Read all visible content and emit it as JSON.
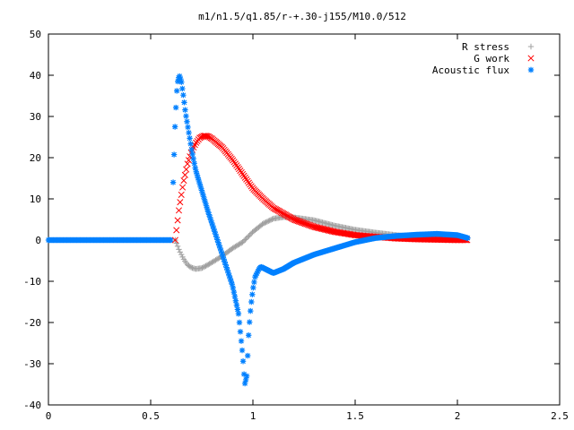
{
  "chart_data": {
    "type": "scatter",
    "title": "m1/n1.5/q1.85/r-+.30-j155/M10.0/512",
    "xlim": [
      0,
      2.5
    ],
    "ylim": [
      -40,
      50
    ],
    "x_ticks": [
      "0",
      "0.5",
      "1",
      "1.5",
      "2",
      "2.5"
    ],
    "x_tick_values": [
      0,
      0.5,
      1,
      1.5,
      2,
      2.5
    ],
    "y_ticks": [
      "-40",
      "-30",
      "-20",
      "-10",
      "0",
      "10",
      "20",
      "30",
      "40",
      "50"
    ],
    "y_tick_values": [
      -40,
      -30,
      -20,
      -10,
      0,
      10,
      20,
      30,
      40,
      50
    ],
    "legend_position": "top-right",
    "series": [
      {
        "name": "R stress",
        "marker": "plus",
        "color": "#a0a0a0",
        "x": [
          0.62,
          0.64,
          0.66,
          0.68,
          0.7,
          0.72,
          0.75,
          0.78,
          0.82,
          0.86,
          0.9,
          0.95,
          1.0,
          1.05,
          1.1,
          1.15,
          1.2,
          1.3,
          1.4,
          1.5,
          1.6,
          1.7,
          1.8,
          1.9,
          2.0,
          2.05
        ],
        "y": [
          0,
          -2.5,
          -4.5,
          -6.0,
          -6.7,
          -7.0,
          -6.8,
          -6.0,
          -4.8,
          -3.5,
          -2.0,
          -0.5,
          2.0,
          4.0,
          5.2,
          5.6,
          5.5,
          4.8,
          3.5,
          2.5,
          1.8,
          1.2,
          0.8,
          0.5,
          0.3,
          0.2
        ]
      },
      {
        "name": "G work",
        "marker": "cross",
        "color": "#ff0000",
        "x": [
          0.62,
          0.64,
          0.66,
          0.68,
          0.7,
          0.72,
          0.74,
          0.76,
          0.78,
          0.8,
          0.85,
          0.9,
          0.95,
          1.0,
          1.05,
          1.1,
          1.2,
          1.3,
          1.4,
          1.5,
          1.6,
          1.7,
          1.8,
          1.9,
          2.0,
          2.05
        ],
        "y": [
          0,
          8.0,
          14.0,
          18.5,
          21.5,
          23.5,
          24.8,
          25.3,
          25.2,
          24.6,
          22.5,
          19.5,
          16.0,
          12.5,
          10.0,
          7.8,
          5.0,
          3.2,
          2.0,
          1.2,
          0.8,
          0.4,
          0.2,
          0.1,
          0.0,
          0.0
        ]
      },
      {
        "name": "Acoustic flux",
        "marker": "star",
        "color": "#0080ff",
        "x": [
          0.61,
          0.62,
          0.63,
          0.64,
          0.65,
          0.66,
          0.67,
          0.68,
          0.69,
          0.7,
          0.72,
          0.75,
          0.78,
          0.82,
          0.86,
          0.9,
          0.93,
          0.95,
          0.96,
          0.97,
          0.98,
          0.99,
          1.0,
          1.01,
          1.02,
          1.03,
          1.04,
          1.06,
          1.08,
          1.1,
          1.15,
          1.2,
          1.3,
          1.4,
          1.5,
          1.6,
          1.7,
          1.8,
          1.9,
          2.0,
          2.05
        ],
        "y": [
          14.0,
          29.0,
          38.0,
          40.0,
          38.5,
          35.0,
          31.0,
          28.0,
          25.0,
          22.0,
          17.0,
          12.0,
          7.0,
          1.0,
          -5.0,
          -11.0,
          -18.0,
          -28.0,
          -35.0,
          -33.0,
          -22.0,
          -16.0,
          -12.0,
          -9.0,
          -8.0,
          -7.0,
          -6.5,
          -7.0,
          -7.5,
          -8.0,
          -7.0,
          -5.5,
          -3.5,
          -2.0,
          -0.5,
          0.5,
          1.0,
          1.3,
          1.5,
          1.2,
          0.5
        ]
      }
    ],
    "acoustic_flat_segment": {
      "x_start": 0,
      "x_end": 0.6,
      "y": 0
    }
  }
}
